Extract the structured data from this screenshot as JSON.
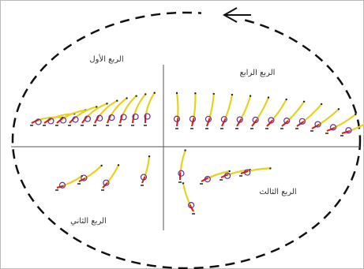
{
  "quadrants": [
    {
      "label": "الربع الأول"
    },
    {
      "label": "الربع الرابع"
    },
    {
      "label": "الربع الثاني"
    },
    {
      "label": "الربع الثالث"
    }
  ]
}
